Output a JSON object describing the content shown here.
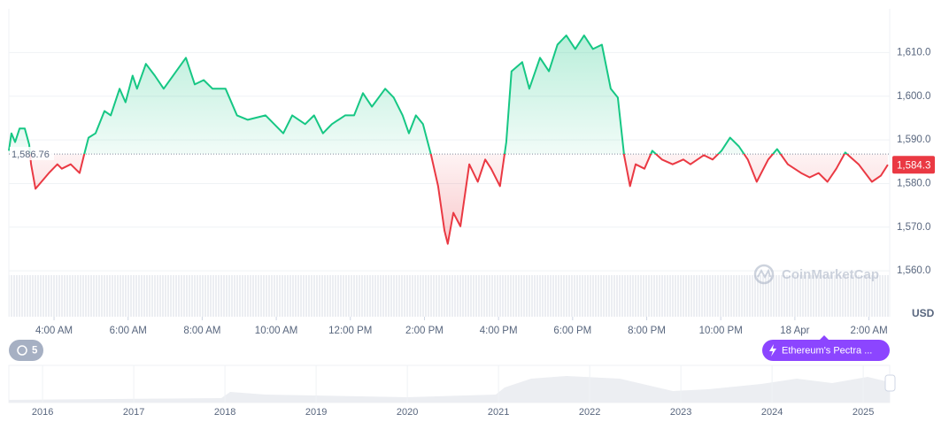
{
  "chart_data": {
    "type": "line",
    "x": [
      2.78,
      2.85,
      2.95,
      3.07,
      3.21,
      3.33,
      3.38,
      3.5,
      3.66,
      3.86,
      4.09,
      4.21,
      4.45,
      4.69,
      4.81,
      4.93,
      5.12,
      5.36,
      5.53,
      5.77,
      5.93,
      6.12,
      6.24,
      6.48,
      6.72,
      6.96,
      7.56,
      7.8,
      8.04,
      8.28,
      8.63,
      8.94,
      9.23,
      9.71,
      10.19,
      10.43,
      10.78,
      11.02,
      11.26,
      11.5,
      11.86,
      12.1,
      12.34,
      12.58,
      12.94,
      13.17,
      13.41,
      13.58,
      13.77,
      13.96,
      14.18,
      14.37,
      14.54,
      14.63,
      14.78,
      14.97,
      15.21,
      15.44,
      15.64,
      15.8,
      16.04,
      16.21,
      16.35,
      16.64,
      16.83,
      17.12,
      17.36,
      17.59,
      17.83,
      18.07,
      18.31,
      18.55,
      18.79,
      19.03,
      19.22,
      19.39,
      19.55,
      19.7,
      19.94,
      20.15,
      20.41,
      20.7,
      20.99,
      21.18,
      21.54,
      21.78,
      22.02,
      22.25,
      22.49,
      22.73,
      22.97,
      23.28,
      23.52,
      23.81,
      24.17,
      24.4,
      24.64,
      24.88,
      25.12,
      25.36,
      25.72,
      26.08,
      26.32,
      26.51
    ],
    "values": [
      1587.5,
      1591.5,
      1589.5,
      1592.6,
      1592.6,
      1588.9,
      1584.4,
      1578.8,
      1580.4,
      1582.4,
      1584.4,
      1583.4,
      1584.4,
      1582.4,
      1586.5,
      1590.5,
      1591.5,
      1596.6,
      1595.6,
      1601.7,
      1598.6,
      1604.7,
      1601.7,
      1607.4,
      1604.7,
      1601.7,
      1608.8,
      1602.7,
      1603.7,
      1601.7,
      1601.7,
      1595.6,
      1594.6,
      1595.6,
      1591.5,
      1595.6,
      1593.6,
      1595.6,
      1591.5,
      1593.6,
      1595.6,
      1595.6,
      1600.7,
      1597.6,
      1601.7,
      1599.7,
      1595.6,
      1591.5,
      1595.6,
      1593.6,
      1586.5,
      1579.4,
      1569.2,
      1566.2,
      1573.3,
      1570.2,
      1584.4,
      1580.4,
      1585.5,
      1583.4,
      1579.4,
      1589.5,
      1605.7,
      1607.8,
      1601.7,
      1608.8,
      1605.7,
      1611.8,
      1613.9,
      1610.8,
      1613.9,
      1610.8,
      1611.8,
      1601.7,
      1599.7,
      1586.5,
      1579.4,
      1584.4,
      1583.4,
      1587.5,
      1585.5,
      1584.4,
      1585.5,
      1584.4,
      1586.5,
      1585.5,
      1587.5,
      1590.5,
      1588.5,
      1585.5,
      1580.4,
      1585.5,
      1587.9,
      1584.4,
      1582.4,
      1581.4,
      1582.4,
      1580.4,
      1583.4,
      1587.1,
      1584.4,
      1580.4,
      1581.8,
      1584.3
    ],
    "last_price_label": "1,584.3",
    "reference": {
      "value": 1586.76,
      "label": "1,586.76"
    },
    "color_up": "#16c784",
    "color_down": "#ea3943",
    "xlim": [
      2.78,
      26.56
    ],
    "xticks": [
      {
        "value": 4,
        "label": "4:00 AM"
      },
      {
        "value": 6,
        "label": "6:00 AM"
      },
      {
        "value": 8,
        "label": "8:00 AM"
      },
      {
        "value": 10,
        "label": "10:00 AM"
      },
      {
        "value": 12,
        "label": "12:00 PM"
      },
      {
        "value": 14,
        "label": "2:00 PM"
      },
      {
        "value": 16,
        "label": "4:00 PM"
      },
      {
        "value": 18,
        "label": "6:00 PM"
      },
      {
        "value": 20,
        "label": "8:00 PM"
      },
      {
        "value": 22,
        "label": "10:00 PM"
      },
      {
        "value": 24,
        "label": "18 Apr"
      },
      {
        "value": 26,
        "label": "2:00 AM"
      }
    ],
    "ylim": [
      1549.5,
      1620
    ],
    "yticks": [
      {
        "value": 1560,
        "label": "1,560.0"
      },
      {
        "value": 1570,
        "label": "1,570.0"
      },
      {
        "value": 1580,
        "label": "1,580.0"
      },
      {
        "value": 1590,
        "label": "1,590.0"
      },
      {
        "value": 1600,
        "label": "1,600.0"
      },
      {
        "value": 1610,
        "label": "1,610.0"
      }
    ],
    "grid": true,
    "y_unit": "USD",
    "watermark": "CoinMarketCap"
  },
  "events": {
    "count": 5,
    "label": "Ethereum's Pectra ..."
  },
  "navigator": {
    "xlim": [
      2015.63,
      2025.29
    ],
    "xticks": [
      2016,
      2017,
      2018,
      2019,
      2020,
      2021,
      2022,
      2023,
      2024,
      2025
    ]
  }
}
